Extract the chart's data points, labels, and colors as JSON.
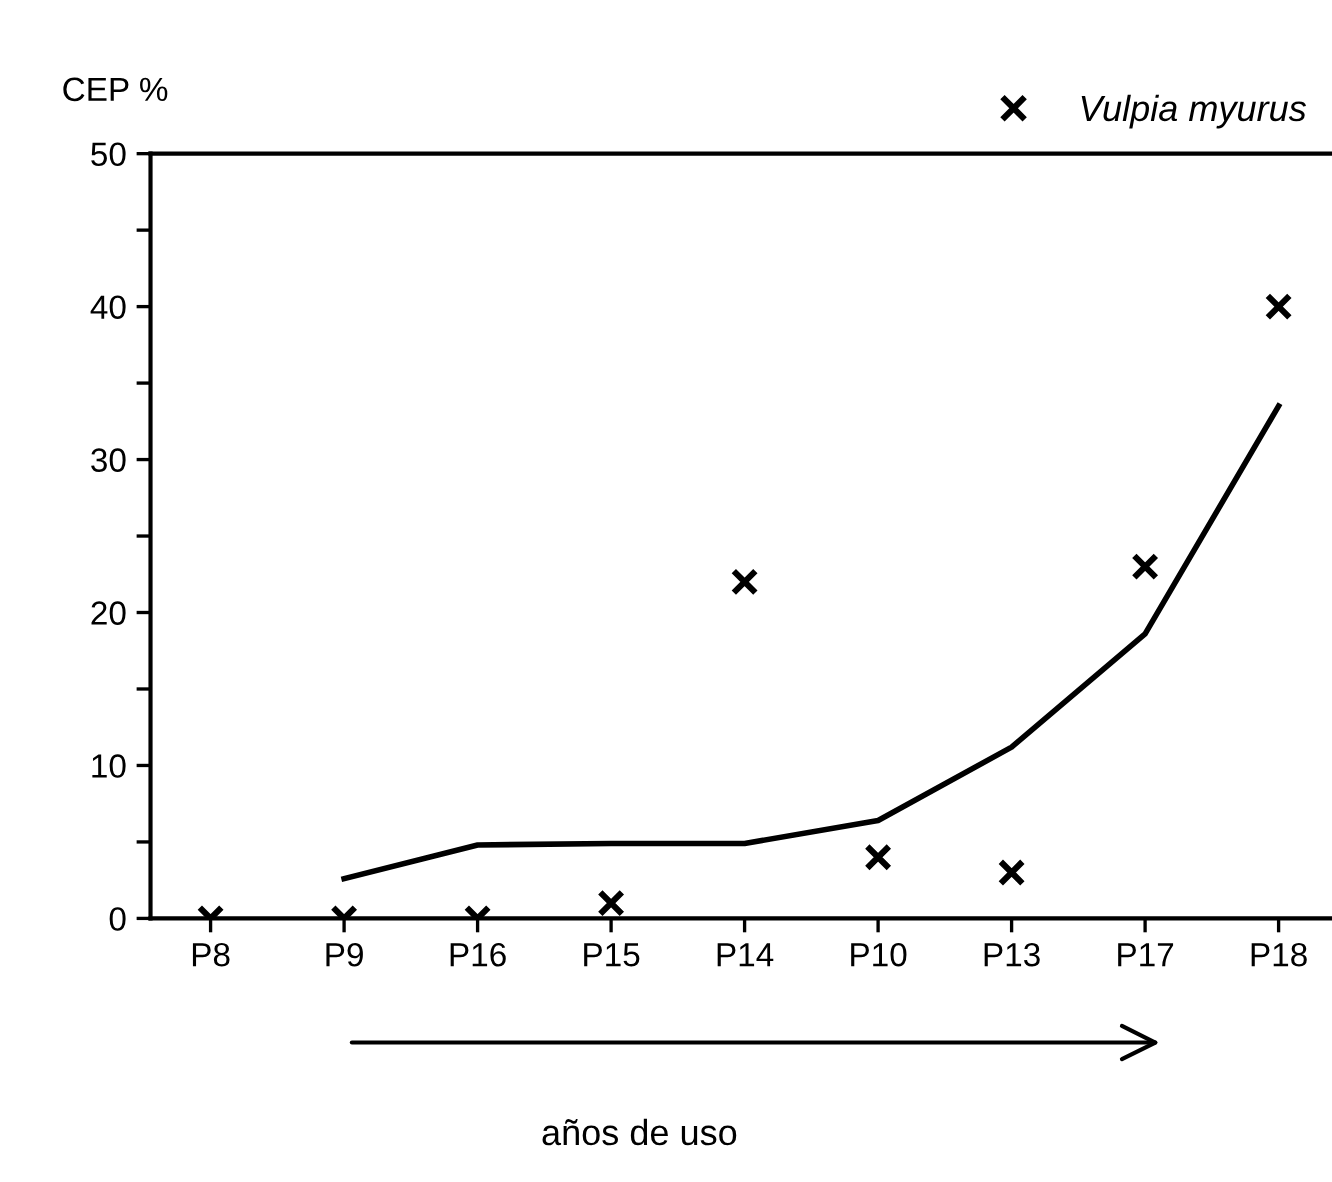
{
  "chart_data": {
    "type": "scatter",
    "ylabel": "CEP %",
    "categories": [
      "P8",
      "P9",
      "P16",
      "P15",
      "P14",
      "P10",
      "P13",
      "P17",
      "P18"
    ],
    "series": [
      {
        "name": "Vulpia myurus",
        "color": "#000000",
        "marker": "cross",
        "values": [
          0,
          0,
          0,
          1,
          22,
          4,
          3,
          23,
          40
        ]
      },
      {
        "type": "line",
        "color": "#000000",
        "marker": "none",
        "line_style": "solid",
        "values": [
          null,
          2.6,
          4.8,
          4.9,
          4.9,
          6.4,
          11.2,
          18.6,
          33.5
        ]
      }
    ],
    "ylim": [
      0,
      50
    ],
    "yticks": [
      0,
      {
        "value": 5,
        "label": null
      },
      10,
      {
        "value": 15,
        "label": null
      },
      20,
      {
        "value": 25,
        "label": null
      },
      30,
      {
        "value": 35,
        "label": null
      },
      40,
      {
        "value": 45,
        "label": null
      },
      50
    ],
    "grid": false,
    "legend": "top right",
    "annotations": [
      "años de uso"
    ]
  }
}
